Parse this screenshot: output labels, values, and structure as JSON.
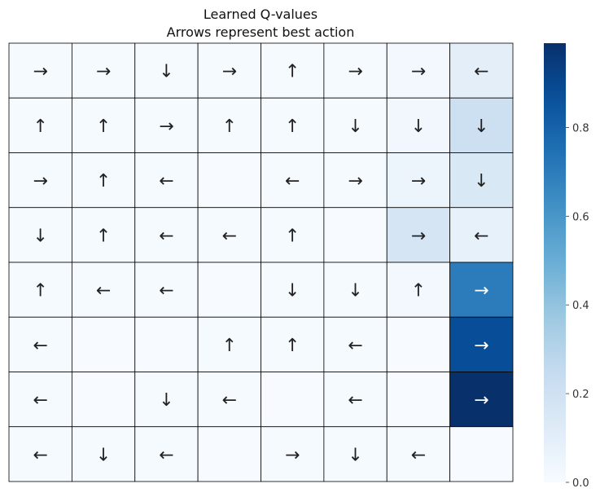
{
  "chart_data": {
    "type": "heatmap",
    "title": "Learned Q-values",
    "subtitle": "Arrows represent best action",
    "rows": 8,
    "cols": 8,
    "values": [
      [
        0.01,
        0.01,
        0.01,
        0.01,
        0.01,
        0.01,
        0.02,
        0.1
      ],
      [
        0.01,
        0.01,
        0.01,
        0.01,
        0.01,
        0.01,
        0.03,
        0.21
      ],
      [
        0.01,
        0.01,
        0.01,
        0.0,
        0.01,
        0.01,
        0.05,
        0.15
      ],
      [
        0.01,
        0.01,
        0.01,
        0.01,
        0.01,
        0.0,
        0.17,
        0.08
      ],
      [
        0.01,
        0.01,
        0.01,
        0.0,
        0.01,
        0.01,
        0.02,
        0.7
      ],
      [
        0.01,
        0.0,
        0.0,
        0.01,
        0.01,
        0.01,
        0.0,
        0.88
      ],
      [
        0.01,
        0.0,
        0.01,
        0.01,
        0.0,
        0.01,
        0.0,
        0.99
      ],
      [
        0.01,
        0.01,
        0.01,
        0.0,
        0.01,
        0.01,
        0.01,
        0.0
      ]
    ],
    "best_actions": [
      [
        "→",
        "→",
        "↓",
        "→",
        "↑",
        "→",
        "→",
        "←"
      ],
      [
        "↑",
        "↑",
        "→",
        "↑",
        "↑",
        "↓",
        "↓",
        "↓"
      ],
      [
        "→",
        "↑",
        "←",
        "",
        "←",
        "→",
        "→",
        "↓"
      ],
      [
        "↓",
        "↑",
        "←",
        "←",
        "↑",
        "",
        "→",
        "←"
      ],
      [
        "↑",
        "←",
        "←",
        "",
        "↓",
        "↓",
        "↑",
        "→"
      ],
      [
        "←",
        "",
        "",
        "↑",
        "↑",
        "←",
        "",
        "→"
      ],
      [
        "←",
        "",
        "↓",
        "←",
        "",
        "←",
        "",
        "→"
      ],
      [
        "←",
        "↓",
        "←",
        "",
        "→",
        "↓",
        "←",
        ""
      ]
    ],
    "colorbar": {
      "min": 0.0,
      "max": 0.99,
      "ticks": [
        0.0,
        0.2,
        0.4,
        0.6,
        0.8
      ],
      "tick_labels": [
        "0.0",
        "0.2",
        "0.4",
        "0.6",
        "0.8"
      ],
      "colormap": "Blues"
    }
  }
}
